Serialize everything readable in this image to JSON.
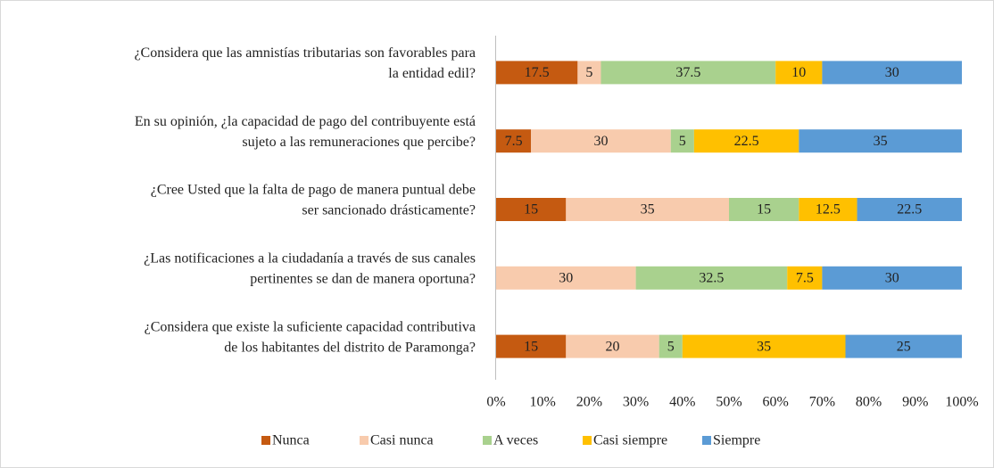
{
  "chart_data": {
    "type": "stacked-bar-horizontal",
    "categories": [
      [
        "¿Considera que las amnistías tributarias son favorables para",
        "la entidad edil?"
      ],
      [
        "En su opinión, ¿la capacidad de pago del contribuyente está",
        "sujeto a las remuneraciones que percibe?"
      ],
      [
        "¿Cree Usted que la falta de pago de manera puntual debe",
        "ser sancionado drásticamente?"
      ],
      [
        "¿Las notificaciones a la ciudadanía a través de sus canales",
        "pertinentes se dan de manera oportuna?"
      ],
      [
        "¿Considera que existe la suficiente capacidad contributiva",
        "de los habitantes del distrito de Paramonga?"
      ]
    ],
    "series": [
      {
        "name": "Nunca",
        "color": "#c55a11",
        "values": [
          17.5,
          7.5,
          15,
          0,
          15
        ]
      },
      {
        "name": "Casi nunca",
        "color": "#f8cbad",
        "values": [
          5,
          30,
          35,
          30,
          20
        ]
      },
      {
        "name": "A veces",
        "color": "#a9d18e",
        "values": [
          37.5,
          5,
          15,
          32.5,
          5
        ]
      },
      {
        "name": "Casi siempre",
        "color": "#ffc000",
        "values": [
          10,
          22.5,
          12.5,
          7.5,
          35
        ]
      },
      {
        "name": "Siempre",
        "color": "#5b9bd5",
        "values": [
          30,
          35,
          22.5,
          30,
          25
        ]
      }
    ],
    "xlim": [
      0,
      100
    ],
    "xticks": [
      {
        "value": 0,
        "label": "0%"
      },
      {
        "value": 10,
        "label": "10%"
      },
      {
        "value": 20,
        "label": "20%"
      },
      {
        "value": 30,
        "label": "30%"
      },
      {
        "value": 40,
        "label": "40%"
      },
      {
        "value": 50,
        "label": "50%"
      },
      {
        "value": 60,
        "label": "60%"
      },
      {
        "value": 70,
        "label": "70%"
      },
      {
        "value": 80,
        "label": "80%"
      },
      {
        "value": 90,
        "label": "90%"
      },
      {
        "value": 100,
        "label": "100%"
      }
    ],
    "legend": "bottom"
  }
}
